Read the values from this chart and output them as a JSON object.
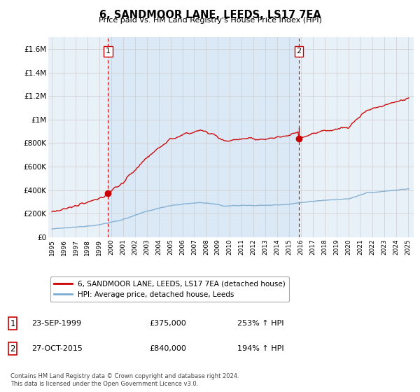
{
  "title": "6, SANDMOOR LANE, LEEDS, LS17 7EA",
  "subtitle": "Price paid vs. HM Land Registry's House Price Index (HPI)",
  "ylim": [
    0,
    1700000
  ],
  "yticks": [
    0,
    200000,
    400000,
    600000,
    800000,
    1000000,
    1200000,
    1400000,
    1600000
  ],
  "ytick_labels": [
    "£0",
    "£200K",
    "£400K",
    "£600K",
    "£800K",
    "£1M",
    "£1.2M",
    "£1.4M",
    "£1.6M"
  ],
  "xlim_left": 1994.7,
  "xlim_right": 2025.5,
  "background_color": "#ffffff",
  "plot_bg_color": "#e8f0f8",
  "grid_color": "#cccccc",
  "purchase1": {
    "date_num": 1999.73,
    "price": 375000,
    "label": "1",
    "date_str": "23-SEP-1999",
    "price_str": "£375,000",
    "hpi_change": "253% ↑ HPI"
  },
  "purchase2": {
    "date_num": 2015.82,
    "price": 840000,
    "label": "2",
    "date_str": "27-OCT-2015",
    "price_str": "£840,000",
    "hpi_change": "194% ↑ HPI"
  },
  "legend_line1": "6, SANDMOOR LANE, LEEDS, LS17 7EA (detached house)",
  "legend_line2": "HPI: Average price, detached house, Leeds",
  "footer": "Contains HM Land Registry data © Crown copyright and database right 2024.\nThis data is licensed under the Open Government Licence v3.0.",
  "line_color_red": "#cc0000",
  "line_color_blue": "#7aaad0",
  "dashed_color": "#cc0000"
}
